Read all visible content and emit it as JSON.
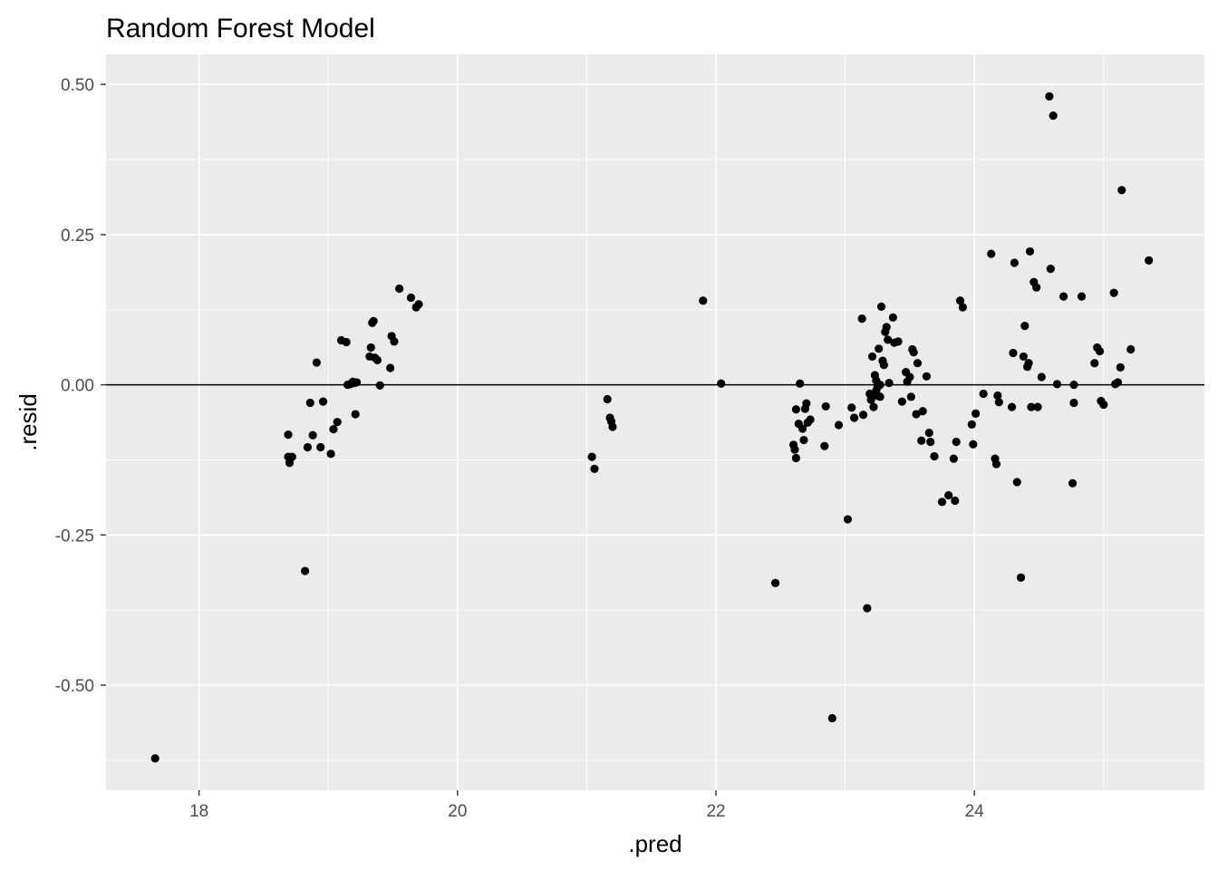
{
  "chart_data": {
    "type": "scatter",
    "title": "Random Forest Model",
    "xlabel": ".pred",
    "ylabel": ".resid",
    "xlim": [
      17.28,
      25.78
    ],
    "ylim": [
      -0.675,
      0.55
    ],
    "x_ticks": [
      18,
      20,
      22,
      24
    ],
    "y_ticks": [
      -0.5,
      -0.25,
      0.0,
      0.25,
      0.5
    ],
    "x_tick_labels": [
      "18",
      "20",
      "22",
      "24"
    ],
    "y_tick_labels": [
      "-0.50",
      "-0.25",
      "0.00",
      "0.25",
      "0.50"
    ],
    "x_minor": [
      17,
      19,
      21,
      23,
      25
    ],
    "y_minor": [
      -0.625,
      -0.375,
      -0.125,
      0.125,
      0.375
    ],
    "reference_line_y": 0,
    "grid": true,
    "panel_background": "#ebebeb",
    "grid_color": "#ffffff",
    "point_color": "#000000",
    "points": [
      [
        17.66,
        -0.622
      ],
      [
        18.69,
        -0.083
      ],
      [
        18.69,
        -0.12
      ],
      [
        18.7,
        -0.13
      ],
      [
        18.72,
        -0.12
      ],
      [
        18.82,
        -0.31
      ],
      [
        18.84,
        -0.104
      ],
      [
        18.86,
        -0.03
      ],
      [
        18.88,
        -0.084
      ],
      [
        18.91,
        0.037
      ],
      [
        18.94,
        -0.104
      ],
      [
        18.96,
        -0.028
      ],
      [
        19.02,
        -0.115
      ],
      [
        19.04,
        -0.074
      ],
      [
        19.07,
        -0.062
      ],
      [
        19.1,
        0.074
      ],
      [
        19.14,
        0.071
      ],
      [
        19.15,
        0.0
      ],
      [
        19.17,
        0.001
      ],
      [
        19.19,
        0.005
      ],
      [
        19.2,
        0.003
      ],
      [
        19.21,
        -0.049
      ],
      [
        19.22,
        0.004
      ],
      [
        19.32,
        0.047
      ],
      [
        19.33,
        0.062
      ],
      [
        19.34,
        0.103
      ],
      [
        19.35,
        0.106
      ],
      [
        19.36,
        0.045
      ],
      [
        19.38,
        0.041
      ],
      [
        19.4,
        -0.001
      ],
      [
        19.48,
        0.028
      ],
      [
        19.49,
        0.081
      ],
      [
        19.51,
        0.072
      ],
      [
        19.55,
        0.16
      ],
      [
        19.64,
        0.145
      ],
      [
        19.68,
        0.129
      ],
      [
        19.7,
        0.134
      ],
      [
        21.04,
        -0.12
      ],
      [
        21.06,
        -0.14
      ],
      [
        21.16,
        -0.024
      ],
      [
        21.18,
        -0.055
      ],
      [
        21.19,
        -0.061
      ],
      [
        21.2,
        -0.07
      ],
      [
        21.9,
        0.14
      ],
      [
        22.04,
        0.002
      ],
      [
        22.46,
        -0.33
      ],
      [
        22.6,
        -0.1
      ],
      [
        22.61,
        -0.108
      ],
      [
        22.62,
        -0.122
      ],
      [
        22.62,
        -0.041
      ],
      [
        22.64,
        -0.065
      ],
      [
        22.65,
        0.002
      ],
      [
        22.67,
        -0.073
      ],
      [
        22.68,
        -0.092
      ],
      [
        22.69,
        -0.04
      ],
      [
        22.7,
        -0.031
      ],
      [
        22.71,
        -0.063
      ],
      [
        22.73,
        -0.058
      ],
      [
        22.84,
        -0.102
      ],
      [
        22.85,
        -0.036
      ],
      [
        22.9,
        -0.555
      ],
      [
        22.95,
        -0.067
      ],
      [
        23.02,
        -0.224
      ],
      [
        23.05,
        -0.038
      ],
      [
        23.07,
        -0.055
      ],
      [
        23.13,
        0.11
      ],
      [
        23.14,
        -0.05
      ],
      [
        23.17,
        -0.372
      ],
      [
        23.19,
        -0.015
      ],
      [
        23.2,
        -0.025
      ],
      [
        23.21,
        0.047
      ],
      [
        23.22,
        -0.037
      ],
      [
        23.23,
        0.016
      ],
      [
        23.24,
        0.007
      ],
      [
        23.24,
        -0.01
      ],
      [
        23.25,
        -0.004
      ],
      [
        23.25,
        -0.018
      ],
      [
        23.26,
        0.06
      ],
      [
        23.27,
        0.0
      ],
      [
        23.27,
        -0.02
      ],
      [
        23.28,
        0.13
      ],
      [
        23.29,
        0.04
      ],
      [
        23.3,
        0.033
      ],
      [
        23.31,
        0.088
      ],
      [
        23.32,
        0.096
      ],
      [
        23.33,
        0.075
      ],
      [
        23.34,
        0.003
      ],
      [
        23.37,
        0.112
      ],
      [
        23.38,
        0.07
      ],
      [
        23.41,
        0.072
      ],
      [
        23.44,
        -0.028
      ],
      [
        23.47,
        0.021
      ],
      [
        23.48,
        0.005
      ],
      [
        23.5,
        0.013
      ],
      [
        23.51,
        -0.02
      ],
      [
        23.52,
        0.059
      ],
      [
        23.53,
        0.054
      ],
      [
        23.55,
        -0.049
      ],
      [
        23.56,
        0.036
      ],
      [
        23.59,
        -0.093
      ],
      [
        23.6,
        -0.044
      ],
      [
        23.63,
        0.014
      ],
      [
        23.65,
        -0.08
      ],
      [
        23.66,
        -0.095
      ],
      [
        23.69,
        -0.119
      ],
      [
        23.75,
        -0.195
      ],
      [
        23.8,
        -0.184
      ],
      [
        23.84,
        -0.123
      ],
      [
        23.85,
        -0.193
      ],
      [
        23.86,
        -0.095
      ],
      [
        23.89,
        0.14
      ],
      [
        23.91,
        0.129
      ],
      [
        23.98,
        -0.066
      ],
      [
        23.99,
        -0.099
      ],
      [
        24.01,
        -0.048
      ],
      [
        24.07,
        -0.015
      ],
      [
        24.13,
        0.218
      ],
      [
        24.16,
        -0.123
      ],
      [
        24.17,
        -0.132
      ],
      [
        24.18,
        -0.018
      ],
      [
        24.19,
        -0.029
      ],
      [
        24.29,
        -0.037
      ],
      [
        24.3,
        0.053
      ],
      [
        24.31,
        0.203
      ],
      [
        24.33,
        -0.162
      ],
      [
        24.36,
        -0.321
      ],
      [
        24.38,
        0.047
      ],
      [
        24.39,
        0.098
      ],
      [
        24.41,
        0.03
      ],
      [
        24.42,
        0.036
      ],
      [
        24.43,
        0.222
      ],
      [
        24.44,
        -0.037
      ],
      [
        24.46,
        0.171
      ],
      [
        24.48,
        0.162
      ],
      [
        24.49,
        -0.037
      ],
      [
        24.52,
        0.013
      ],
      [
        24.58,
        0.48
      ],
      [
        24.59,
        0.193
      ],
      [
        24.61,
        0.448
      ],
      [
        24.64,
        0.001
      ],
      [
        24.69,
        0.147
      ],
      [
        24.76,
        -0.164
      ],
      [
        24.77,
        -0.03
      ],
      [
        24.77,
        0.0
      ],
      [
        24.83,
        0.147
      ],
      [
        24.93,
        0.036
      ],
      [
        24.95,
        0.062
      ],
      [
        24.97,
        0.056
      ],
      [
        24.98,
        -0.027
      ],
      [
        25.0,
        -0.033
      ],
      [
        25.08,
        0.153
      ],
      [
        25.09,
        0.001
      ],
      [
        25.11,
        0.004
      ],
      [
        25.13,
        0.029
      ],
      [
        25.14,
        0.324
      ],
      [
        25.21,
        0.059
      ],
      [
        25.35,
        0.207
      ]
    ]
  }
}
